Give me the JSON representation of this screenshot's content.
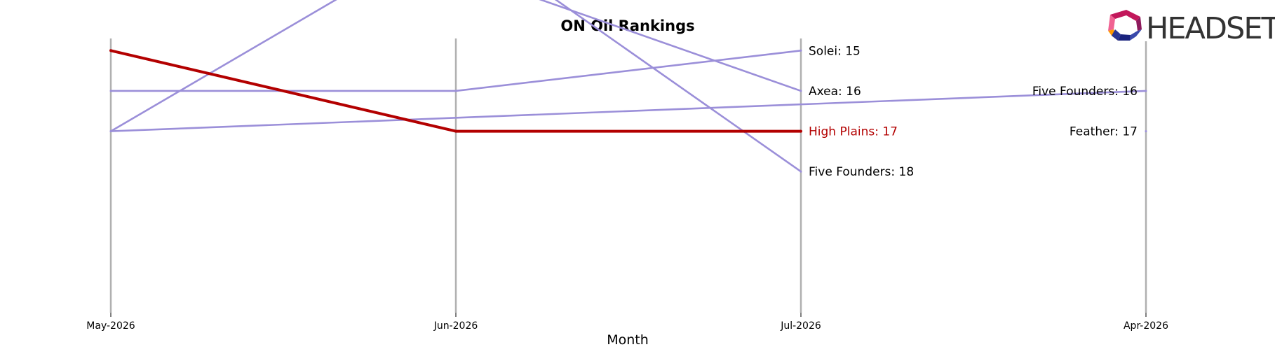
{
  "chart_data": {
    "type": "line",
    "title": "ON Oil Rankings",
    "xlabel": "Month",
    "ylabel": "",
    "categories": [
      "May-2026",
      "Jun-2026",
      "Jul-2026",
      "Apr-2026"
    ],
    "y_inverted": true,
    "ylim": [
      21.5,
      14.7
    ],
    "grid": "vertical lines at each month",
    "series": [
      {
        "name": "High Plains",
        "highlight": true,
        "color": "#b30000",
        "values": [
          15,
          17,
          17,
          null
        ],
        "label": "High Plains: 17"
      },
      {
        "name": "Solei",
        "color": "#9b8fd9",
        "values": [
          16,
          16,
          15,
          null
        ],
        "label": "Solei: 15"
      },
      {
        "name": "Axea",
        "color": "#9b8fd9",
        "values": [
          null,
          13,
          16,
          null
        ],
        "label": "Axea: 16"
      },
      {
        "name": "Five Founders",
        "color": "#9b8fd9",
        "values": [
          17,
          12,
          18,
          null
        ],
        "label": "Five Founders: 18"
      },
      {
        "name": "Five Founders",
        "color": "#9b8fd9",
        "values": [
          17,
          null,
          null,
          16
        ],
        "label": "Five Founders: 16"
      },
      {
        "name": "Feather",
        "color": "#9b8fd9",
        "values": [
          null,
          null,
          null,
          17
        ],
        "label": "Feather: 17"
      }
    ]
  },
  "logo": {
    "text": "HEADSET"
  },
  "colors": {
    "highlight": "#b30000",
    "other": "#9b8fd9",
    "grid": "#b0b0b0"
  }
}
